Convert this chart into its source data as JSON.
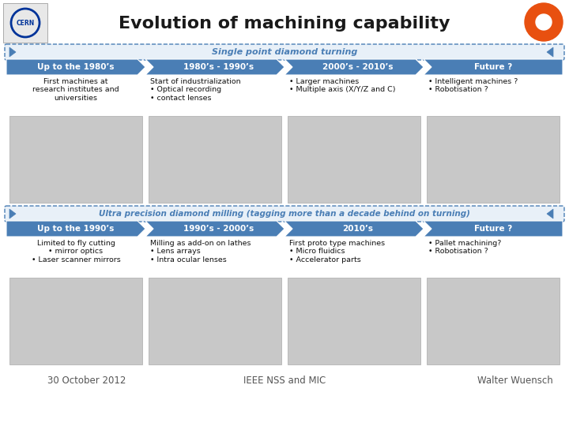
{
  "title": "Evolution of machining capability",
  "bg_color": "#ffffff",
  "title_color": "#1a1a1a",
  "title_fontsize": 16,
  "section1_label": "Single point diamond turning",
  "section2_label": "Ultra precision diamond milling (tagging more than a decade behind on turning)",
  "arrow_color": "#4a7eb5",
  "arrow_text_color": "#ffffff",
  "row1_headers": [
    "Up to the 1980’s",
    "1980’s - 1990’s",
    "2000’s - 2010’s",
    "Future ?"
  ],
  "row1_texts": [
    "First machines at\nresearch institutes and\nuniversities",
    "Start of industrialization\n• Optical recording\n• contact lenses",
    "• Larger machines\n• Multiple axis (X/Y/Z and C)",
    "• Intelligent machines ?\n• Robotisation ?"
  ],
  "row2_headers": [
    "Up to the 1990’s",
    "1990’s - 2000’s",
    "2010’s",
    "Future ?"
  ],
  "row2_texts": [
    "Limited to fly cutting\n• mirror optics\n• Laser scanner mirrors",
    "Milling as add-on on lathes\n• Lens arrays\n• Intra ocular lenses",
    "First proto type machines\n• Micro fluidics\n• Accelerator parts",
    "• Pallet machining?\n• Robotisation ?"
  ],
  "footer_left": "30 October 2012",
  "footer_center": "IEEE NSS and MIC",
  "footer_right": "Walter Wuensch",
  "banner_bg": "#e8f0f8",
  "banner_border": "#4a7eb5",
  "banner_text_color": "#4a7eb5",
  "banner_fontsize": 8,
  "header_fontsize": 7.5,
  "body_fontsize": 6.8,
  "footer_fontsize": 8.5
}
